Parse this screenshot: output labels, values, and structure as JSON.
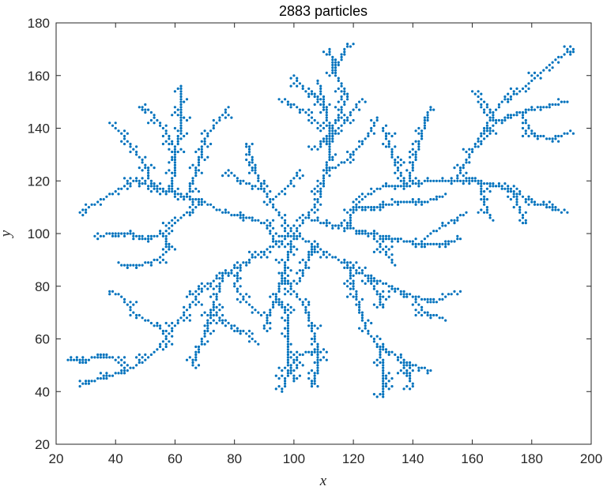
{
  "chart_data": {
    "type": "scatter",
    "title": "2883 particles",
    "xlabel": "x",
    "ylabel": "y",
    "xlim": [
      20,
      200
    ],
    "ylim": [
      20,
      180
    ],
    "xticks": [
      20,
      40,
      60,
      80,
      100,
      120,
      140,
      160,
      180,
      200
    ],
    "yticks": [
      20,
      40,
      60,
      80,
      100,
      120,
      140,
      160,
      180
    ],
    "grid": false,
    "legend": "none",
    "marker_color": "#0072BD",
    "description_of_points": "Diffusion-limited aggregation cluster centered near (100,100) with branching arms; branch segments listed below as polylines in data units",
    "branches": [
      [
        [
          100,
          100
        ],
        [
          104,
          106
        ],
        [
          108,
          112
        ],
        [
          110,
          120
        ],
        [
          112,
          130
        ],
        [
          112,
          140
        ],
        [
          110,
          150
        ],
        [
          108,
          158
        ]
      ],
      [
        [
          108,
          132
        ],
        [
          114,
          142
        ],
        [
          118,
          152
        ],
        [
          114,
          160
        ],
        [
          112,
          170
        ]
      ],
      [
        [
          112,
          160
        ],
        [
          116,
          166
        ],
        [
          118,
          172
        ]
      ],
      [
        [
          110,
          150
        ],
        [
          104,
          154
        ],
        [
          100,
          160
        ]
      ],
      [
        [
          110,
          140
        ],
        [
          104,
          146
        ],
        [
          98,
          150
        ]
      ],
      [
        [
          112,
          136
        ],
        [
          118,
          144
        ],
        [
          122,
          150
        ]
      ],
      [
        [
          100,
          100
        ],
        [
          96,
          106
        ],
        [
          92,
          112
        ],
        [
          88,
          120
        ],
        [
          86,
          128
        ],
        [
          84,
          134
        ]
      ],
      [
        [
          90,
          116
        ],
        [
          82,
          120
        ],
        [
          78,
          124
        ]
      ],
      [
        [
          92,
          112
        ],
        [
          98,
          118
        ],
        [
          102,
          124
        ]
      ],
      [
        [
          104,
          106
        ],
        [
          110,
          104
        ],
        [
          118,
          102
        ],
        [
          126,
          100
        ],
        [
          134,
          98
        ],
        [
          142,
          96
        ],
        [
          150,
          96
        ],
        [
          156,
          98
        ]
      ],
      [
        [
          126,
          100
        ],
        [
          130,
          94
        ],
        [
          134,
          88
        ]
      ],
      [
        [
          142,
          96
        ],
        [
          146,
          100
        ],
        [
          152,
          104
        ],
        [
          158,
          108
        ]
      ],
      [
        [
          118,
          102
        ],
        [
          120,
          110
        ],
        [
          124,
          114
        ],
        [
          130,
          118
        ],
        [
          138,
          118
        ],
        [
          146,
          120
        ],
        [
          154,
          120
        ],
        [
          162,
          120
        ]
      ],
      [
        [
          138,
          118
        ],
        [
          140,
          126
        ],
        [
          142,
          134
        ],
        [
          144,
          142
        ],
        [
          146,
          148
        ]
      ],
      [
        [
          138,
          118
        ],
        [
          134,
          126
        ],
        [
          132,
          134
        ],
        [
          130,
          140
        ]
      ],
      [
        [
          154,
          120
        ],
        [
          158,
          128
        ],
        [
          162,
          136
        ],
        [
          168,
          142
        ],
        [
          176,
          146
        ],
        [
          184,
          148
        ],
        [
          192,
          150
        ]
      ],
      [
        [
          162,
          136
        ],
        [
          166,
          144
        ],
        [
          170,
          150
        ],
        [
          176,
          154
        ],
        [
          182,
          160
        ],
        [
          188,
          166
        ],
        [
          194,
          170
        ]
      ],
      [
        [
          168,
          142
        ],
        [
          164,
          150
        ],
        [
          160,
          154
        ]
      ],
      [
        [
          176,
          146
        ],
        [
          180,
          138
        ],
        [
          186,
          136
        ],
        [
          192,
          138
        ]
      ],
      [
        [
          162,
          120
        ],
        [
          168,
          118
        ],
        [
          174,
          116
        ],
        [
          180,
          112
        ],
        [
          186,
          110
        ],
        [
          190,
          108
        ]
      ],
      [
        [
          174,
          116
        ],
        [
          176,
          108
        ],
        [
          178,
          104
        ]
      ],
      [
        [
          162,
          120
        ],
        [
          164,
          112
        ],
        [
          166,
          106
        ]
      ],
      [
        [
          112,
          124
        ],
        [
          118,
          128
        ],
        [
          124,
          136
        ],
        [
          128,
          144
        ]
      ],
      [
        [
          120,
          110
        ],
        [
          128,
          110
        ],
        [
          136,
          112
        ],
        [
          144,
          112
        ],
        [
          150,
          114
        ]
      ],
      [
        [
          100,
          100
        ],
        [
          94,
          96
        ],
        [
          88,
          92
        ],
        [
          82,
          88
        ],
        [
          76,
          84
        ],
        [
          70,
          80
        ],
        [
          64,
          76
        ]
      ],
      [
        [
          70,
          80
        ],
        [
          66,
          74
        ],
        [
          62,
          68
        ],
        [
          58,
          62
        ],
        [
          54,
          56
        ],
        [
          50,
          52
        ],
        [
          44,
          48
        ],
        [
          38,
          46
        ],
        [
          32,
          44
        ],
        [
          28,
          42
        ]
      ],
      [
        [
          44,
          48
        ],
        [
          40,
          52
        ],
        [
          36,
          54
        ],
        [
          30,
          52
        ],
        [
          24,
          52
        ]
      ],
      [
        [
          58,
          62
        ],
        [
          52,
          66
        ],
        [
          46,
          70
        ],
        [
          42,
          76
        ],
        [
          38,
          78
        ]
      ],
      [
        [
          76,
          84
        ],
        [
          74,
          76
        ],
        [
          72,
          70
        ],
        [
          70,
          62
        ],
        [
          68,
          56
        ],
        [
          66,
          50
        ]
      ],
      [
        [
          72,
          70
        ],
        [
          78,
          66
        ],
        [
          84,
          62
        ],
        [
          88,
          58
        ]
      ],
      [
        [
          82,
          88
        ],
        [
          80,
          80
        ],
        [
          84,
          74
        ],
        [
          88,
          70
        ]
      ],
      [
        [
          94,
          96
        ],
        [
          90,
          104
        ],
        [
          84,
          106
        ],
        [
          76,
          108
        ],
        [
          70,
          112
        ],
        [
          64,
          114
        ],
        [
          58,
          116
        ],
        [
          52,
          118
        ],
        [
          46,
          120
        ],
        [
          40,
          116
        ],
        [
          34,
          112
        ],
        [
          28,
          108
        ]
      ],
      [
        [
          64,
          114
        ],
        [
          66,
          120
        ],
        [
          68,
          128
        ],
        [
          70,
          136
        ],
        [
          74,
          142
        ],
        [
          78,
          148
        ]
      ],
      [
        [
          58,
          116
        ],
        [
          60,
          124
        ],
        [
          60,
          132
        ],
        [
          62,
          140
        ],
        [
          62,
          148
        ],
        [
          62,
          156
        ]
      ],
      [
        [
          52,
          118
        ],
        [
          50,
          126
        ],
        [
          46,
          132
        ],
        [
          42,
          138
        ],
        [
          38,
          142
        ]
      ],
      [
        [
          70,
          112
        ],
        [
          62,
          106
        ],
        [
          56,
          100
        ],
        [
          50,
          98
        ],
        [
          44,
          100
        ],
        [
          38,
          100
        ],
        [
          34,
          98
        ]
      ],
      [
        [
          56,
          100
        ],
        [
          58,
          94
        ],
        [
          54,
          90
        ],
        [
          48,
          88
        ],
        [
          42,
          88
        ]
      ],
      [
        [
          60,
          132
        ],
        [
          56,
          140
        ],
        [
          52,
          146
        ],
        [
          48,
          148
        ]
      ],
      [
        [
          100,
          100
        ],
        [
          98,
          92
        ],
        [
          96,
          84
        ],
        [
          94,
          76
        ],
        [
          92,
          70
        ],
        [
          90,
          64
        ]
      ],
      [
        [
          96,
          84
        ],
        [
          100,
          78
        ],
        [
          104,
          72
        ],
        [
          106,
          64
        ],
        [
          108,
          56
        ],
        [
          108,
          48
        ],
        [
          106,
          42
        ]
      ],
      [
        [
          108,
          56
        ],
        [
          102,
          54
        ],
        [
          98,
          48
        ],
        [
          96,
          40
        ]
      ],
      [
        [
          94,
          76
        ],
        [
          98,
          68
        ],
        [
          98,
          60
        ],
        [
          98,
          52
        ],
        [
          100,
          44
        ]
      ],
      [
        [
          100,
          100
        ],
        [
          106,
          96
        ],
        [
          112,
          92
        ],
        [
          118,
          88
        ],
        [
          124,
          84
        ],
        [
          128,
          78
        ],
        [
          130,
          72
        ]
      ],
      [
        [
          118,
          88
        ],
        [
          120,
          80
        ],
        [
          122,
          72
        ],
        [
          124,
          64
        ],
        [
          128,
          58
        ],
        [
          134,
          54
        ],
        [
          140,
          50
        ],
        [
          146,
          48
        ]
      ],
      [
        [
          128,
          58
        ],
        [
          130,
          50
        ],
        [
          130,
          44
        ],
        [
          130,
          38
        ]
      ],
      [
        [
          134,
          54
        ],
        [
          138,
          48
        ],
        [
          140,
          42
        ]
      ],
      [
        [
          124,
          84
        ],
        [
          132,
          80
        ],
        [
          140,
          76
        ],
        [
          148,
          74
        ],
        [
          154,
          78
        ]
      ],
      [
        [
          140,
          76
        ],
        [
          144,
          70
        ],
        [
          150,
          68
        ]
      ],
      [
        [
          106,
          96
        ],
        [
          104,
          88
        ],
        [
          102,
          82
        ]
      ]
    ]
  }
}
